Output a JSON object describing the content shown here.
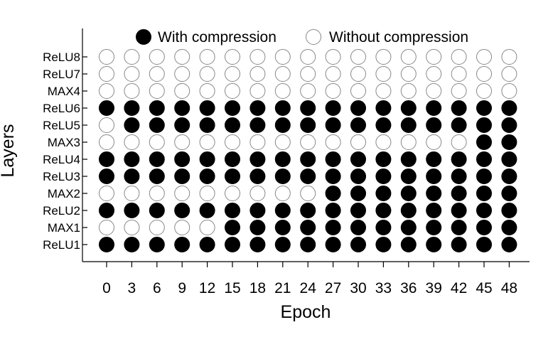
{
  "chart_data": {
    "type": "scatter",
    "xlabel": "Epoch",
    "ylabel": "Layers",
    "x": [
      0,
      3,
      6,
      9,
      12,
      15,
      18,
      21,
      24,
      27,
      30,
      33,
      36,
      39,
      42,
      45,
      48
    ],
    "layers": [
      "ReLU1",
      "MAX1",
      "ReLU2",
      "MAX2",
      "ReLU3",
      "ReLU4",
      "MAX3",
      "ReLU5",
      "ReLU6",
      "MAX4",
      "ReLU7",
      "ReLU8"
    ],
    "legend": {
      "position": "top",
      "entries": [
        {
          "label": "With compression",
          "fill": "#000000"
        },
        {
          "label": "Without compression",
          "fill": "#ffffff"
        }
      ]
    },
    "compressed": {
      "ReLU1": [
        1,
        1,
        1,
        1,
        1,
        1,
        1,
        1,
        1,
        1,
        1,
        1,
        1,
        1,
        1,
        1,
        1
      ],
      "MAX1": [
        0,
        0,
        0,
        0,
        0,
        1,
        1,
        1,
        1,
        1,
        1,
        1,
        1,
        1,
        1,
        1,
        1
      ],
      "ReLU2": [
        1,
        1,
        1,
        1,
        1,
        1,
        1,
        1,
        1,
        1,
        1,
        1,
        1,
        1,
        1,
        1,
        1
      ],
      "MAX2": [
        0,
        0,
        0,
        0,
        0,
        0,
        0,
        0,
        0,
        1,
        1,
        1,
        1,
        1,
        1,
        1,
        1
      ],
      "ReLU3": [
        1,
        1,
        1,
        1,
        1,
        1,
        1,
        1,
        1,
        1,
        1,
        1,
        1,
        1,
        1,
        1,
        1
      ],
      "ReLU4": [
        1,
        1,
        1,
        1,
        1,
        1,
        1,
        1,
        1,
        1,
        1,
        1,
        1,
        1,
        1,
        1,
        1
      ],
      "MAX3": [
        0,
        0,
        0,
        0,
        0,
        0,
        0,
        0,
        0,
        0,
        0,
        0,
        0,
        0,
        0,
        1,
        1
      ],
      "ReLU5": [
        0,
        1,
        1,
        1,
        1,
        1,
        1,
        1,
        1,
        1,
        1,
        1,
        1,
        1,
        1,
        1,
        1
      ],
      "ReLU6": [
        1,
        1,
        1,
        1,
        1,
        1,
        1,
        1,
        1,
        1,
        1,
        1,
        1,
        1,
        1,
        1,
        1
      ],
      "MAX4": [
        0,
        0,
        0,
        0,
        0,
        0,
        0,
        0,
        0,
        0,
        0,
        0,
        0,
        0,
        0,
        0,
        0
      ],
      "ReLU7": [
        0,
        0,
        0,
        0,
        0,
        0,
        0,
        0,
        0,
        0,
        0,
        0,
        0,
        0,
        0,
        0,
        0
      ],
      "ReLU8": [
        0,
        0,
        0,
        0,
        0,
        0,
        0,
        0,
        0,
        0,
        0,
        0,
        0,
        0,
        0,
        0,
        0
      ]
    },
    "colors": {
      "filled": "#000000",
      "empty": "#ffffff",
      "outline": "#888888"
    },
    "grid": false
  }
}
